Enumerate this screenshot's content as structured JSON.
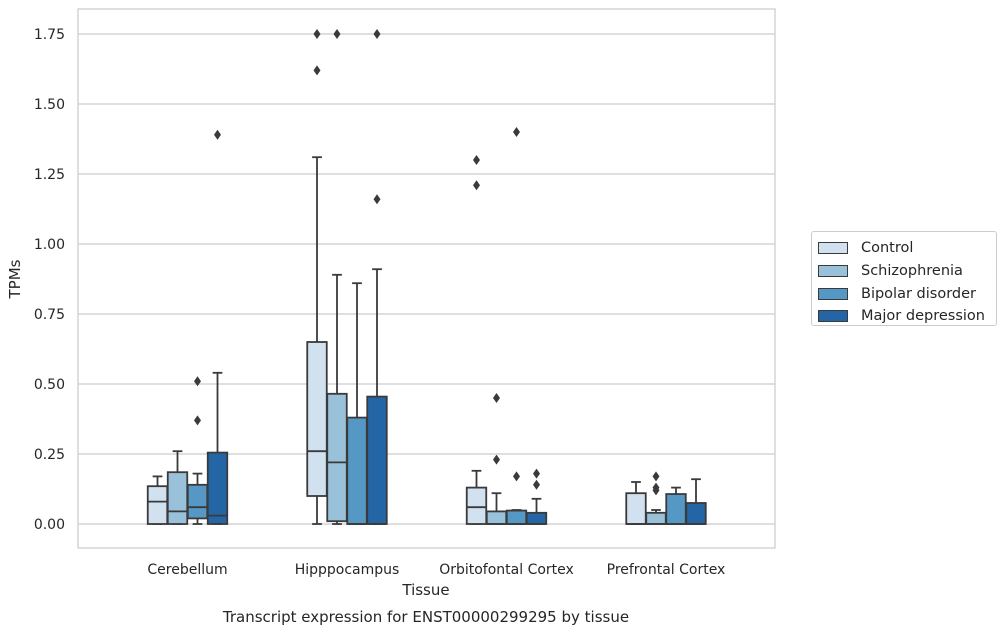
{
  "chart_data": {
    "type": "box",
    "title": "Transcript expression for ENST00000299295 by tissue",
    "xlabel": "Tissue",
    "ylabel": "TPMs",
    "ylim": [
      -0.085,
      1.84
    ],
    "yticks": [
      "0.00",
      "0.25",
      "0.50",
      "0.75",
      "1.00",
      "1.25",
      "1.50",
      "1.75"
    ],
    "categories": [
      "Cerebellum",
      "Hipppocampus",
      "Orbitofontal Cortex",
      "Prefrontal Cortex"
    ],
    "grid": "horizontal",
    "legend_position": "right",
    "series": [
      {
        "name": "Control",
        "color": "#d1e1f0",
        "boxes": [
          {
            "whislo": 0.0,
            "q1": 0.0,
            "med": 0.08,
            "q3": 0.135,
            "whishi": 0.17,
            "fliers": []
          },
          {
            "whislo": 0.0,
            "q1": 0.1,
            "med": 0.26,
            "q3": 0.65,
            "whishi": 1.31,
            "fliers": [
              1.62,
              1.75
            ]
          },
          {
            "whislo": 0.0,
            "q1": 0.0,
            "med": 0.06,
            "q3": 0.13,
            "whishi": 0.19,
            "fliers": [
              1.21,
              1.3
            ]
          },
          {
            "whislo": 0.0,
            "q1": 0.0,
            "med": 0.0,
            "q3": 0.11,
            "whishi": 0.15,
            "fliers": []
          }
        ]
      },
      {
        "name": "Schizophrenia",
        "color": "#9ac1da",
        "boxes": [
          {
            "whislo": 0.0,
            "q1": 0.0,
            "med": 0.045,
            "q3": 0.185,
            "whishi": 0.26,
            "fliers": []
          },
          {
            "whislo": 0.0,
            "q1": 0.01,
            "med": 0.22,
            "q3": 0.465,
            "whishi": 0.89,
            "fliers": [
              1.75
            ]
          },
          {
            "whislo": 0.0,
            "q1": 0.0,
            "med": 0.0,
            "q3": 0.045,
            "whishi": 0.11,
            "fliers": [
              0.23,
              0.45
            ]
          },
          {
            "whislo": 0.0,
            "q1": 0.0,
            "med": 0.0,
            "q3": 0.04,
            "whishi": 0.05,
            "fliers": [
              0.12,
              0.13,
              0.17
            ]
          }
        ]
      },
      {
        "name": "Bipolar disorder",
        "color": "#5598c5",
        "boxes": [
          {
            "whislo": 0.0,
            "q1": 0.02,
            "med": 0.06,
            "q3": 0.14,
            "whishi": 0.18,
            "fliers": [
              0.37,
              0.51
            ]
          },
          {
            "whislo": 0.0,
            "q1": 0.0,
            "med": 0.0,
            "q3": 0.38,
            "whishi": 0.86,
            "fliers": []
          },
          {
            "whislo": 0.0,
            "q1": 0.0,
            "med": 0.0,
            "q3": 0.048,
            "whishi": 0.05,
            "fliers": [
              0.17,
              1.4
            ]
          },
          {
            "whislo": 0.0,
            "q1": 0.0,
            "med": 0.0,
            "q3": 0.107,
            "whishi": 0.13,
            "fliers": []
          }
        ]
      },
      {
        "name": "Major depression",
        "color": "#2466a5",
        "boxes": [
          {
            "whislo": 0.0,
            "q1": 0.0,
            "med": 0.03,
            "q3": 0.255,
            "whishi": 0.54,
            "fliers": [
              1.39
            ]
          },
          {
            "whislo": 0.0,
            "q1": 0.0,
            "med": 0.0,
            "q3": 0.455,
            "whishi": 0.91,
            "fliers": [
              1.16,
              1.75
            ]
          },
          {
            "whislo": 0.0,
            "q1": 0.0,
            "med": 0.0,
            "q3": 0.04,
            "whishi": 0.09,
            "fliers": [
              0.14,
              0.18
            ]
          },
          {
            "whislo": 0.0,
            "q1": 0.0,
            "med": 0.0,
            "q3": 0.075,
            "whishi": 0.16,
            "fliers": []
          }
        ]
      }
    ]
  }
}
